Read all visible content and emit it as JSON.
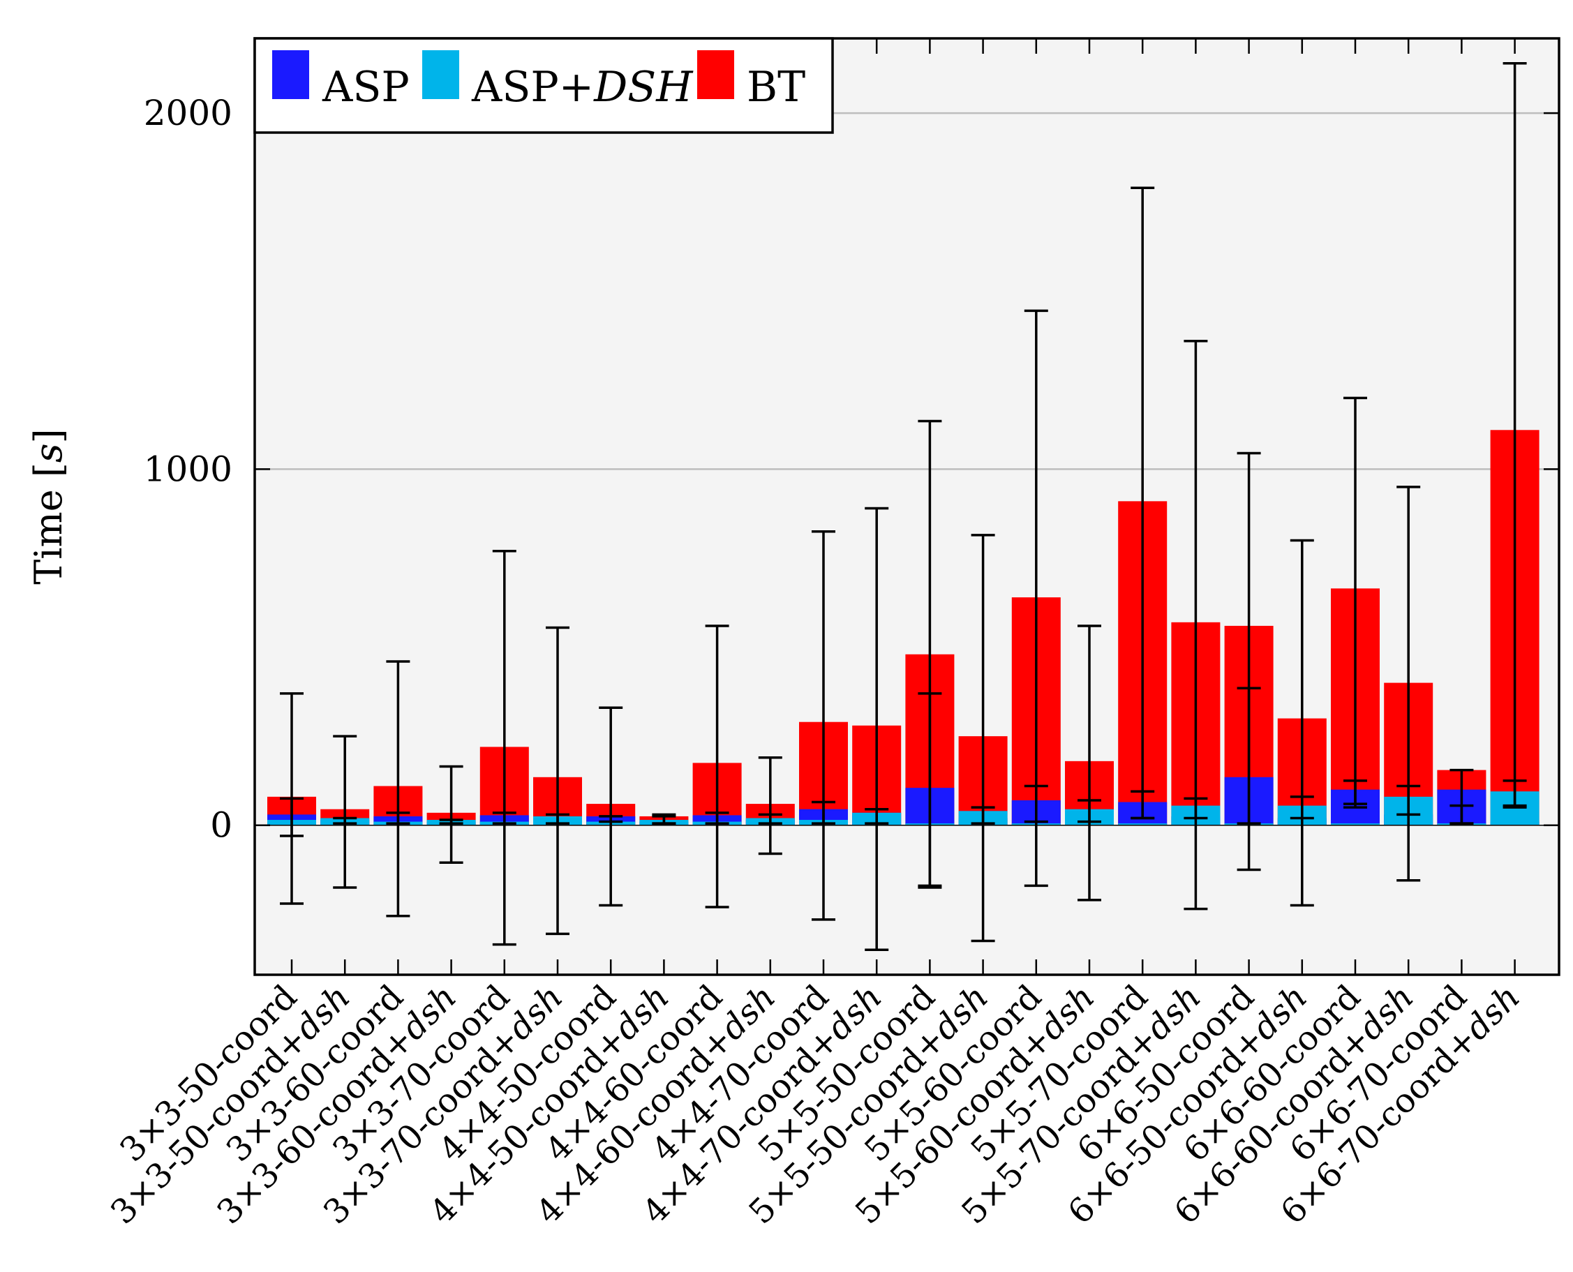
{
  "chart_data": {
    "type": "bar",
    "stacked": false,
    "title": "",
    "xlabel": "",
    "ylabel": "Time",
    "ylabel_unit": "s",
    "ylim": [
      -420,
      2210
    ],
    "yticks": [
      0,
      1000,
      2000
    ],
    "grid": true,
    "legend_position": "top-left",
    "colors": {
      "ASP": "#1a1aff",
      "ASP+DSH": "#00b4ea",
      "BT": "#ff0000",
      "plot_bg": "#f4f4f4",
      "grid": "#bdbdbd"
    },
    "categories": [
      {
        "prefix": "3×3-50-coord",
        "suffix": ""
      },
      {
        "prefix": "3×3-50-coord+",
        "suffix": "dsh"
      },
      {
        "prefix": "3×3-60-coord",
        "suffix": ""
      },
      {
        "prefix": "3×3-60-coord+",
        "suffix": "dsh"
      },
      {
        "prefix": "3×3-70-coord",
        "suffix": ""
      },
      {
        "prefix": "3×3-70-coord+",
        "suffix": "dsh"
      },
      {
        "prefix": "4×4-50-coord",
        "suffix": ""
      },
      {
        "prefix": "4×4-50-coord+",
        "suffix": "dsh"
      },
      {
        "prefix": "4×4-60-coord",
        "suffix": ""
      },
      {
        "prefix": "4×4-60-coord+",
        "suffix": "dsh"
      },
      {
        "prefix": "4×4-70-coord",
        "suffix": ""
      },
      {
        "prefix": "4×4-70-coord+",
        "suffix": "dsh"
      },
      {
        "prefix": "5×5-50-coord",
        "suffix": ""
      },
      {
        "prefix": "5×5-50-coord+",
        "suffix": "dsh"
      },
      {
        "prefix": "5×5-60-coord",
        "suffix": ""
      },
      {
        "prefix": "5×5-60-coord+",
        "suffix": "dsh"
      },
      {
        "prefix": "5×5-70-coord",
        "suffix": ""
      },
      {
        "prefix": "5×5-70-coord+",
        "suffix": "dsh"
      },
      {
        "prefix": "6×6-50-coord",
        "suffix": ""
      },
      {
        "prefix": "6×6-50-coord+",
        "suffix": "dsh"
      },
      {
        "prefix": "6×6-60-coord",
        "suffix": ""
      },
      {
        "prefix": "6×6-60-coord+",
        "suffix": "dsh"
      },
      {
        "prefix": "6×6-70-coord",
        "suffix": ""
      },
      {
        "prefix": "6×6-70-coord+",
        "suffix": "dsh"
      }
    ],
    "series": [
      {
        "name": "BT",
        "legend_label": "BT",
        "values": [
          80,
          45,
          110,
          35,
          220,
          135,
          60,
          25,
          175,
          60,
          290,
          280,
          480,
          250,
          640,
          180,
          910,
          570,
          560,
          300,
          665,
          400,
          155,
          1110
        ]
      },
      {
        "name": "ASP",
        "legend_label": "ASP",
        "values": [
          30,
          15,
          25,
          10,
          28,
          20,
          25,
          10,
          28,
          15,
          45,
          35,
          105,
          20,
          70,
          20,
          65,
          25,
          135,
          20,
          100,
          30,
          100,
          10
        ]
      },
      {
        "name": "ASP+DSH",
        "legend_label": "ASP+",
        "legend_label_italic": "DSH",
        "values": [
          15,
          20,
          10,
          15,
          10,
          25,
          10,
          15,
          10,
          20,
          15,
          35,
          5,
          40,
          5,
          45,
          5,
          55,
          5,
          55,
          5,
          80,
          5,
          95
        ]
      }
    ],
    "error_bars": [
      {
        "series": "ASP",
        "values": [
          {
            "low": -30,
            "high": 75
          },
          {
            "low": 5,
            "high": 20
          },
          {
            "low": 5,
            "high": 35
          },
          {
            "low": 5,
            "high": 15
          },
          {
            "low": 5,
            "high": 35
          },
          {
            "low": 5,
            "high": 30
          },
          {
            "low": 10,
            "high": 25
          },
          {
            "low": 5,
            "high": 25
          },
          {
            "low": 5,
            "high": 35
          },
          {
            "low": 5,
            "high": 30
          },
          {
            "low": 5,
            "high": 65
          },
          {
            "low": 5,
            "high": 45
          },
          {
            "low": -170,
            "high": 370
          },
          {
            "low": 5,
            "high": 50
          },
          {
            "low": 10,
            "high": 110
          },
          {
            "low": 10,
            "high": 70
          },
          {
            "low": 20,
            "high": 95
          },
          {
            "low": 20,
            "high": 75
          },
          {
            "low": 5,
            "high": 385
          },
          {
            "low": 20,
            "high": 80
          },
          {
            "low": 50,
            "high": 125
          },
          {
            "low": 30,
            "high": 110
          },
          {
            "low": 5,
            "high": 55
          },
          {
            "low": 50,
            "high": 125
          }
        ]
      },
      {
        "series": "BT",
        "values": [
          {
            "low": -220,
            "high": 370
          },
          {
            "low": -175,
            "high": 250
          },
          {
            "low": -255,
            "high": 460
          },
          {
            "low": -105,
            "high": 165
          },
          {
            "low": -335,
            "high": 770
          },
          {
            "low": -305,
            "high": 555
          },
          {
            "low": -225,
            "high": 330
          },
          {
            "low": 5,
            "high": 30
          },
          {
            "low": -230,
            "high": 560
          },
          {
            "low": -80,
            "high": 190
          },
          {
            "low": -265,
            "high": 825
          },
          {
            "low": -350,
            "high": 890
          },
          {
            "low": -175,
            "high": 1135
          },
          {
            "low": -325,
            "high": 815
          },
          {
            "low": -170,
            "high": 1445
          },
          {
            "low": -210,
            "high": 560
          },
          {
            "low": 20,
            "high": 1790
          },
          {
            "low": -235,
            "high": 1360
          },
          {
            "low": -125,
            "high": 1045
          },
          {
            "low": -225,
            "high": 800
          },
          {
            "low": 60,
            "high": 1200
          },
          {
            "low": -155,
            "high": 950
          },
          {
            "low": 5,
            "high": 155
          },
          {
            "low": 55,
            "high": 2140
          }
        ]
      }
    ]
  }
}
